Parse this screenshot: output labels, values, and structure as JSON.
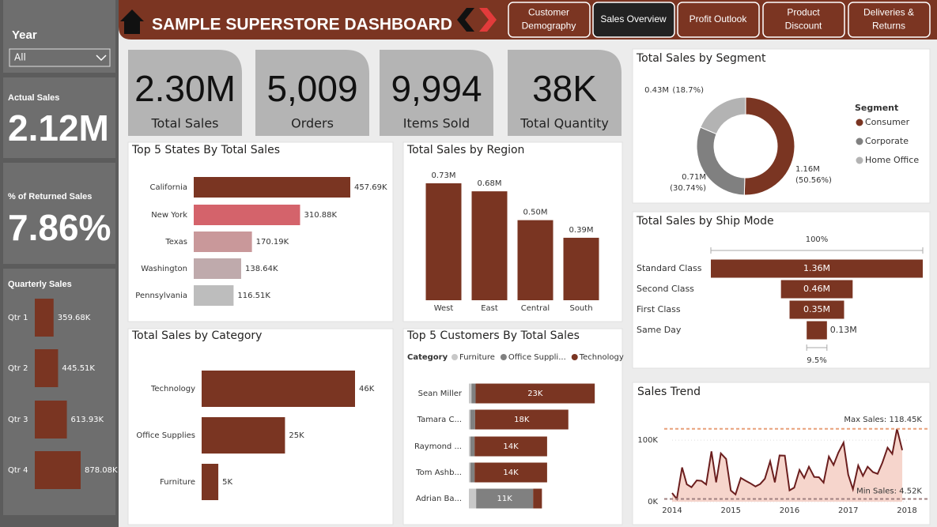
{
  "header": {
    "title": "SAMPLE SUPERSTORE DASHBOARD",
    "nav": [
      {
        "lines": [
          "Customer",
          "Demography"
        ]
      },
      {
        "lines": [
          "Sales Overview"
        ]
      },
      {
        "lines": [
          "Profit Outlook"
        ]
      },
      {
        "lines": [
          "Product",
          "Discount"
        ]
      },
      {
        "lines": [
          "Deliveries &",
          "Returns"
        ]
      }
    ],
    "active": 1
  },
  "sidebar": {
    "filter_label": "Year",
    "filter_value": "All",
    "actual_sales_label": "Actual Sales",
    "actual_sales": "2.12M",
    "returned_label": "% of Returned Sales",
    "returned": "7.86%"
  },
  "kpis": [
    {
      "value": "2.30M",
      "label": "Total Sales"
    },
    {
      "value": "5,009",
      "label": "Orders"
    },
    {
      "value": "9,994",
      "label": "Items Sold"
    },
    {
      "value": "38K",
      "label": "Total Quantity"
    }
  ],
  "chart_data": [
    {
      "type": "bar",
      "orientation": "horizontal",
      "title": "Quarterly Sales",
      "categories": [
        "Qtr 1",
        "Qtr 2",
        "Qtr 3",
        "Qtr 4"
      ],
      "values": [
        359.68,
        445.51,
        613.93,
        878.08
      ],
      "value_labels": [
        "359.68K",
        "445.51K",
        "613.93K",
        "878.08K"
      ],
      "color": "#7a3522"
    },
    {
      "type": "bar",
      "orientation": "horizontal",
      "title": "Top 5 States By Total Sales",
      "categories": [
        "California",
        "New York",
        "Texas",
        "Washington",
        "Pennsylvania"
      ],
      "values": [
        457.69,
        310.88,
        170.19,
        138.64,
        116.51
      ],
      "value_labels": [
        "457.69K",
        "310.88K",
        "170.19K",
        "138.64K",
        "116.51K"
      ],
      "colors": [
        "#7a3522",
        "#d4636b",
        "#c9989a",
        "#bfaaac",
        "#bdbdbd"
      ]
    },
    {
      "type": "bar",
      "orientation": "vertical",
      "title": "Total Sales by Region",
      "categories": [
        "West",
        "East",
        "Central",
        "South"
      ],
      "values": [
        0.73,
        0.68,
        0.5,
        0.39
      ],
      "value_labels": [
        "0.73M",
        "0.68M",
        "0.50M",
        "0.39M"
      ],
      "color": "#7a3522"
    },
    {
      "type": "bar",
      "orientation": "horizontal",
      "title": "Total Sales by Category",
      "categories": [
        "Technology",
        "Office Supplies",
        "Furniture"
      ],
      "values": [
        46,
        25,
        5
      ],
      "value_labels": [
        "46K",
        "25K",
        "5K"
      ],
      "color": "#7a3522"
    },
    {
      "type": "stacked_bar",
      "title": "Top 5 Customers By Total Sales",
      "legend_title": "Category",
      "categories": [
        "Sean Miller",
        "Tamara C...",
        "Raymond ...",
        "Tom Ashb...",
        "Adrian Ba..."
      ],
      "series": [
        {
          "name": "Furniture",
          "color": "#c8c8c8",
          "values": [
            0.5,
            0.3,
            0.3,
            0.3,
            1.4
          ],
          "value_labels": [
            null,
            null,
            null,
            null,
            null
          ]
        },
        {
          "name": "Office Suppli...",
          "color": "#808080",
          "values": [
            0.8,
            0.9,
            0.8,
            0.8,
            11
          ],
          "value_labels": [
            null,
            null,
            null,
            null,
            "11K"
          ]
        },
        {
          "name": "Technology",
          "color": "#7a3522",
          "values": [
            23,
            18,
            14,
            14,
            1.7
          ],
          "value_labels": [
            "23K",
            "18K",
            "14K",
            "14K",
            null
          ]
        }
      ]
    },
    {
      "type": "donut",
      "title": "Total Sales by Segment",
      "legend_title": "Segment",
      "categories": [
        "Consumer",
        "Corporate",
        "Home Office"
      ],
      "values": [
        1.16,
        0.71,
        0.43
      ],
      "value_labels": [
        "1.16M",
        "0.71M",
        "0.43M"
      ],
      "percent_labels": [
        "(50.56%)",
        "(30.74%)",
        "(18.7%)"
      ],
      "colors": [
        "#7a3522",
        "#808080",
        "#b3b3b3"
      ]
    },
    {
      "type": "funnel",
      "title": "Total Sales by Ship Mode",
      "categories": [
        "Standard Class",
        "Second Class",
        "First Class",
        "Same Day"
      ],
      "values": [
        1.36,
        0.46,
        0.35,
        0.13
      ],
      "value_labels": [
        "1.36M",
        "0.46M",
        "0.35M",
        "0.13M"
      ],
      "top_label": "100%",
      "bottom_label": "9.5%",
      "color": "#7a3522"
    },
    {
      "type": "line",
      "title": "Sales Trend",
      "color": "#6b1e1e",
      "area_color": "#f6d5cc",
      "x": [
        2014.0,
        2014.08,
        2014.17,
        2014.25,
        2014.33,
        2014.42,
        2014.5,
        2014.58,
        2014.67,
        2014.75,
        2014.83,
        2014.92,
        2015.0,
        2015.08,
        2015.17,
        2015.25,
        2015.33,
        2015.42,
        2015.5,
        2015.58,
        2015.67,
        2015.75,
        2015.83,
        2015.92,
        2016.0,
        2016.08,
        2016.17,
        2016.25,
        2016.33,
        2016.42,
        2016.5,
        2016.58,
        2016.67,
        2016.75,
        2016.83,
        2016.92,
        2017.0,
        2017.08,
        2017.17,
        2017.25,
        2017.33,
        2017.42,
        2017.5,
        2017.58,
        2017.67,
        2017.75,
        2017.83,
        2017.92
      ],
      "values": [
        14.2,
        4.52,
        55.7,
        28.3,
        23.6,
        34.6,
        33.9,
        28,
        81.8,
        31.5,
        78.6,
        69.5,
        18.2,
        11.9,
        38.7,
        34.2,
        30.1,
        24.8,
        28.8,
        37.3,
        65.7,
        31.5,
        75.2,
        74.9,
        18.5,
        22.9,
        51.7,
        38.7,
        56.9,
        40.3,
        39.8,
        31.1,
        73.4,
        59.7,
        79.4,
        96.1,
        43.9,
        20.3,
        58.9,
        42,
        56.9,
        48.2,
        45.3,
        63.1,
        87.9,
        77.8,
        118.45,
        83.8
      ],
      "xlim": [
        2014,
        2018
      ],
      "xticks": [
        2014,
        2015,
        2016,
        2017,
        2018
      ],
      "ylim": [
        0,
        140
      ],
      "yticks": [
        {
          "value": 0,
          "label": "0K"
        },
        {
          "value": 100,
          "label": "100K"
        }
      ],
      "reference_lines": [
        {
          "value": 118.45,
          "label": "Max Sales: 118.45K",
          "color": "#e8a07a"
        },
        {
          "value": 4.52,
          "label": "Min Sales: 4.52K",
          "color": "#a08080"
        }
      ]
    }
  ]
}
